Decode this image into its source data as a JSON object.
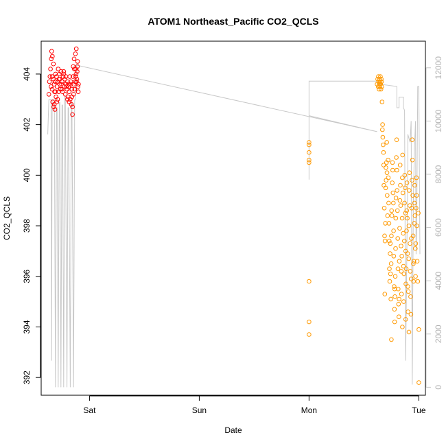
{
  "chart_data": {
    "type": "scatter",
    "title": "ATOM1 Northeast_Pacific CO2_QCLS",
    "xlabel": "Date",
    "ylabel": "CO2_QCLS",
    "x_ticks": [
      "Sat",
      "Sun",
      "Mon",
      "Tue"
    ],
    "x_tick_positions_days": [
      0,
      1,
      2,
      3
    ],
    "xlim_days": [
      -0.44,
      3.06
    ],
    "y_ticks": [
      392,
      394,
      396,
      398,
      400,
      402,
      404
    ],
    "ylim": [
      391.3,
      405.3
    ],
    "y2_ticks": [
      0,
      2000,
      4000,
      6000,
      8000,
      10000,
      12000
    ],
    "y2lim": [
      -300,
      13000
    ],
    "y2_color": "#c8c8c8",
    "series": [
      {
        "color": "#ff0000",
        "marker": "open-circle",
        "points": [
          [
            -0.37,
            403.2
          ],
          [
            -0.365,
            403.7
          ],
          [
            -0.36,
            403.9
          ],
          [
            -0.355,
            404.2
          ],
          [
            -0.35,
            403.5
          ],
          [
            -0.348,
            404.6
          ],
          [
            -0.345,
            404.9
          ],
          [
            -0.34,
            403.4
          ],
          [
            -0.338,
            404.7
          ],
          [
            -0.335,
            402.9
          ],
          [
            -0.33,
            403.8
          ],
          [
            -0.328,
            404.4
          ],
          [
            -0.325,
            402.7
          ],
          [
            -0.322,
            403.6
          ],
          [
            -0.32,
            402.8
          ],
          [
            -0.318,
            403.3
          ],
          [
            -0.315,
            402.6
          ],
          [
            -0.312,
            403.7
          ],
          [
            -0.31,
            404.0
          ],
          [
            -0.305,
            403.1
          ],
          [
            -0.3,
            403.9
          ],
          [
            -0.297,
            402.9
          ],
          [
            -0.295,
            403.5
          ],
          [
            -0.29,
            403.7
          ],
          [
            -0.285,
            404.2
          ],
          [
            -0.28,
            403.3
          ],
          [
            -0.277,
            403.8
          ],
          [
            -0.275,
            404.0
          ],
          [
            -0.27,
            403.6
          ],
          [
            -0.265,
            403.4
          ],
          [
            -0.26,
            404.1
          ],
          [
            -0.255,
            403.6
          ],
          [
            -0.25,
            403.7
          ],
          [
            -0.245,
            403.3
          ],
          [
            -0.24,
            403.9
          ],
          [
            -0.235,
            404.0
          ],
          [
            -0.23,
            403.5
          ],
          [
            -0.225,
            403.8
          ],
          [
            -0.22,
            403.2
          ],
          [
            -0.215,
            403.6
          ],
          [
            -0.21,
            403.5
          ],
          [
            -0.205,
            403.4
          ],
          [
            -0.2,
            403.7
          ],
          [
            -0.195,
            403.1
          ],
          [
            -0.19,
            403.5
          ],
          [
            -0.185,
            403.3
          ],
          [
            -0.18,
            403.9
          ],
          [
            -0.175,
            403.0
          ],
          [
            -0.17,
            403.6
          ],
          [
            -0.165,
            402.8
          ],
          [
            -0.16,
            403.4
          ],
          [
            -0.155,
            402.4
          ],
          [
            -0.15,
            403.9
          ],
          [
            -0.148,
            404.3
          ],
          [
            -0.145,
            403.6
          ],
          [
            -0.14,
            404.6
          ],
          [
            -0.138,
            404.2
          ],
          [
            -0.135,
            403.4
          ],
          [
            -0.13,
            403.7
          ],
          [
            -0.128,
            404.8
          ],
          [
            -0.125,
            403.9
          ],
          [
            -0.122,
            404.0
          ],
          [
            -0.12,
            405.0
          ],
          [
            -0.118,
            403.7
          ],
          [
            -0.115,
            403.8
          ],
          [
            -0.112,
            404.1
          ],
          [
            -0.11,
            404.3
          ],
          [
            -0.108,
            404.5
          ],
          [
            -0.105,
            403.5
          ],
          [
            -0.102,
            403.3
          ],
          [
            -0.1,
            403.6
          ],
          [
            -0.2,
            403.0
          ],
          [
            -0.185,
            402.9
          ],
          [
            -0.16,
            403.1
          ],
          [
            -0.155,
            402.7
          ],
          [
            -0.29,
            403.0
          ],
          [
            -0.31,
            403.3
          ],
          [
            -0.34,
            403.9
          ],
          [
            -0.27,
            403.8
          ],
          [
            -0.25,
            403.4
          ],
          [
            -0.235,
            404.1
          ],
          [
            -0.215,
            403.9
          ],
          [
            -0.19,
            403.6
          ],
          [
            -0.17,
            403.7
          ],
          [
            -0.145,
            403.2
          ],
          [
            -0.125,
            404.2
          ]
        ]
      },
      {
        "color": "#ff9900",
        "marker": "open-circle",
        "points": [
          [
            2.0,
            401.2
          ],
          [
            2.0,
            400.9
          ],
          [
            2.0,
            400.6
          ],
          [
            2.0,
            400.5
          ],
          [
            2.0,
            401.3
          ],
          [
            2.0,
            395.8
          ],
          [
            2.0,
            394.2
          ],
          [
            2.0,
            393.7
          ],
          [
            2.62,
            403.6
          ],
          [
            2.625,
            403.8
          ],
          [
            2.63,
            403.5
          ],
          [
            2.632,
            403.9
          ],
          [
            2.635,
            403.7
          ],
          [
            2.638,
            403.4
          ],
          [
            2.64,
            403.6
          ],
          [
            2.642,
            403.8
          ],
          [
            2.645,
            403.5
          ],
          [
            2.648,
            403.7
          ],
          [
            2.65,
            403.9
          ],
          [
            2.652,
            403.6
          ],
          [
            2.655,
            403.4
          ],
          [
            2.658,
            403.8
          ],
          [
            2.66,
            403.7
          ],
          [
            2.662,
            403.5
          ],
          [
            2.665,
            402.9
          ],
          [
            2.668,
            401.8
          ],
          [
            2.67,
            402.0
          ],
          [
            2.672,
            401.5
          ],
          [
            2.675,
            401.2
          ],
          [
            2.678,
            400.9
          ],
          [
            2.68,
            400.4
          ],
          [
            2.682,
            399.6
          ],
          [
            2.685,
            398.7
          ],
          [
            2.688,
            397.6
          ],
          [
            2.69,
            395.3
          ],
          [
            2.692,
            397.4
          ],
          [
            2.695,
            398.1
          ],
          [
            2.698,
            399.5
          ],
          [
            2.7,
            400.3
          ],
          [
            2.702,
            399.8
          ],
          [
            2.705,
            400.5
          ],
          [
            2.708,
            401.3
          ],
          [
            2.71,
            400.1
          ],
          [
            2.712,
            399.2
          ],
          [
            2.715,
            398.4
          ],
          [
            2.72,
            400.6
          ],
          [
            2.722,
            399.9
          ],
          [
            2.725,
            398.9
          ],
          [
            2.728,
            398.1
          ],
          [
            2.73,
            397.4
          ],
          [
            2.732,
            396.3
          ],
          [
            2.735,
            395.8
          ],
          [
            2.738,
            396.9
          ],
          [
            2.74,
            397.3
          ],
          [
            2.742,
            396.1
          ],
          [
            2.745,
            395.1
          ],
          [
            2.748,
            396.5
          ],
          [
            2.75,
            397.6
          ],
          [
            2.752,
            398.6
          ],
          [
            2.755,
            398.4
          ],
          [
            2.758,
            399.7
          ],
          [
            2.76,
            400.5
          ],
          [
            2.762,
            400.2
          ],
          [
            2.765,
            399.3
          ],
          [
            2.768,
            398.9
          ],
          [
            2.77,
            397.8
          ],
          [
            2.772,
            396.8
          ],
          [
            2.775,
            395.6
          ],
          [
            2.778,
            394.7
          ],
          [
            2.78,
            394.2
          ],
          [
            2.782,
            395.2
          ],
          [
            2.785,
            396.0
          ],
          [
            2.788,
            397.1
          ],
          [
            2.79,
            398.3
          ],
          [
            2.792,
            399.1
          ],
          [
            2.795,
            400.7
          ],
          [
            2.798,
            401.4
          ],
          [
            2.8,
            400.2
          ],
          [
            2.802,
            399.4
          ],
          [
            2.805,
            398.6
          ],
          [
            2.808,
            397.5
          ],
          [
            2.81,
            396.3
          ],
          [
            2.812,
            395.5
          ],
          [
            2.815,
            394.9
          ],
          [
            2.818,
            394.4
          ],
          [
            2.82,
            395.1
          ],
          [
            2.822,
            396.6
          ],
          [
            2.825,
            397.9
          ],
          [
            2.828,
            399.0
          ],
          [
            2.83,
            400.4
          ],
          [
            2.832,
            399.6
          ],
          [
            2.835,
            398.8
          ],
          [
            2.838,
            397.2
          ],
          [
            2.84,
            396.2
          ],
          [
            2.842,
            395.3
          ],
          [
            2.845,
            396.8
          ],
          [
            2.848,
            398.3
          ],
          [
            2.85,
            399.9
          ],
          [
            2.852,
            400.8
          ],
          [
            2.855,
            399.3
          ],
          [
            2.858,
            397.7
          ],
          [
            2.86,
            396.4
          ],
          [
            2.862,
            395.0
          ],
          [
            2.865,
            396.1
          ],
          [
            2.868,
            397.4
          ],
          [
            2.87,
            398.9
          ],
          [
            2.872,
            400.0
          ],
          [
            2.875,
            399.5
          ],
          [
            2.878,
            398.5
          ],
          [
            2.88,
            397.0
          ],
          [
            2.882,
            395.7
          ],
          [
            2.885,
            396.3
          ],
          [
            2.888,
            397.8
          ],
          [
            2.89,
            398.6
          ],
          [
            2.892,
            399.7
          ],
          [
            2.895,
            398.3
          ],
          [
            2.898,
            396.9
          ],
          [
            2.9,
            395.6
          ],
          [
            2.902,
            394.6
          ],
          [
            2.905,
            395.4
          ],
          [
            2.908,
            396.7
          ],
          [
            2.91,
            398.0
          ],
          [
            2.912,
            399.4
          ],
          [
            2.915,
            400.1
          ],
          [
            2.918,
            398.8
          ],
          [
            2.92,
            397.3
          ],
          [
            2.922,
            396.2
          ],
          [
            2.925,
            395.2
          ],
          [
            2.928,
            394.5
          ],
          [
            2.93,
            395.9
          ],
          [
            2.932,
            397.5
          ],
          [
            2.935,
            398.7
          ],
          [
            2.938,
            399.8
          ],
          [
            2.94,
            401.4
          ],
          [
            2.942,
            400.6
          ],
          [
            2.945,
            399.2
          ],
          [
            2.948,
            397.6
          ],
          [
            2.95,
            396.5
          ],
          [
            2.952,
            395.8
          ],
          [
            2.955,
            396.6
          ],
          [
            2.958,
            398.1
          ],
          [
            2.96,
            398.9
          ],
          [
            2.962,
            399.6
          ],
          [
            2.965,
            398.4
          ],
          [
            2.968,
            397.1
          ],
          [
            2.97,
            396.0
          ],
          [
            2.972,
            397.3
          ],
          [
            2.975,
            398.7
          ],
          [
            2.978,
            399.9
          ],
          [
            2.98,
            399.2
          ],
          [
            2.982,
            398.0
          ],
          [
            2.985,
            396.6
          ],
          [
            2.99,
            395.8
          ],
          [
            2.995,
            398.5
          ],
          [
            3.0,
            393.9
          ],
          [
            3.0,
            391.8
          ],
          [
            2.75,
            393.5
          ],
          [
            2.78,
            395.5
          ],
          [
            2.85,
            394.0
          ],
          [
            2.88,
            394.3
          ],
          [
            2.91,
            393.8
          ]
        ]
      }
    ],
    "secondary_line": {
      "color": "#c8c8c8",
      "points": [
        [
          -0.38,
          9500
        ],
        [
          -0.37,
          10800
        ],
        [
          -0.36,
          10800
        ],
        [
          -0.35,
          10800
        ],
        [
          -0.345,
          1000
        ],
        [
          -0.34,
          10800
        ],
        [
          -0.33,
          10800
        ],
        [
          -0.32,
          10800
        ],
        [
          -0.31,
          0
        ],
        [
          -0.3,
          10500
        ],
        [
          -0.295,
          10500
        ],
        [
          -0.285,
          0
        ],
        [
          -0.275,
          10700
        ],
        [
          -0.27,
          10700
        ],
        [
          -0.26,
          0
        ],
        [
          -0.25,
          10600
        ],
        [
          -0.245,
          10600
        ],
        [
          -0.235,
          0
        ],
        [
          -0.225,
          10900
        ],
        [
          -0.22,
          10900
        ],
        [
          -0.205,
          0
        ],
        [
          -0.195,
          10500
        ],
        [
          -0.19,
          10500
        ],
        [
          -0.175,
          0
        ],
        [
          -0.165,
          10700
        ],
        [
          -0.16,
          10700
        ],
        [
          -0.145,
          0
        ],
        [
          -0.135,
          10800
        ],
        [
          -0.13,
          10800
        ],
        [
          -0.12,
          12100
        ],
        [
          2.62,
          9600
        ],
        [
          2.0,
          10200
        ],
        [
          2.0,
          7800
        ],
        [
          2.0,
          11500
        ],
        [
          2.62,
          11500
        ],
        [
          2.62,
          11400
        ],
        [
          2.8,
          11300
        ],
        [
          2.8,
          10500
        ],
        [
          2.82,
          10500
        ],
        [
          2.82,
          10900
        ],
        [
          2.86,
          10900
        ],
        [
          2.86,
          10500
        ],
        [
          2.87,
          10400
        ],
        [
          2.88,
          1000
        ],
        [
          2.9,
          8400
        ],
        [
          2.9,
          9500
        ],
        [
          2.92,
          9200
        ],
        [
          2.93,
          10000
        ],
        [
          2.94,
          100
        ],
        [
          2.95,
          7000
        ],
        [
          2.96,
          9000
        ],
        [
          2.97,
          10000
        ],
        [
          2.975,
          5000
        ],
        [
          2.98,
          5800
        ],
        [
          2.99,
          11300
        ],
        [
          3.0,
          11300
        ],
        [
          3.01,
          5000
        ]
      ]
    }
  }
}
